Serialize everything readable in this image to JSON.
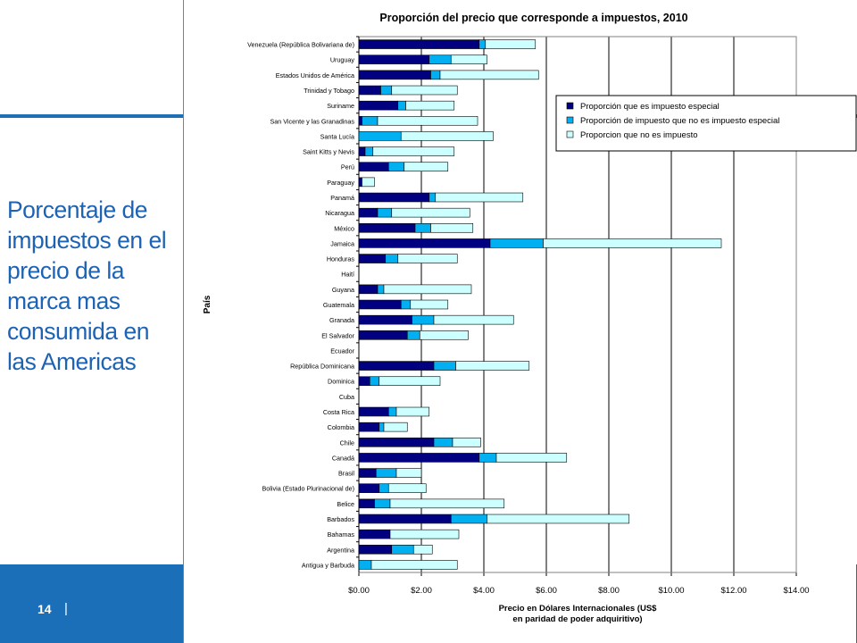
{
  "slide": {
    "title": "Porcentaje de impuestos en el precio de la marca mas consumida en las Americas",
    "page_number": "14",
    "page_separator": "|"
  },
  "colors": {
    "accent_blue": "#1b6eb8",
    "series_special": "#000080",
    "series_other_tax": "#00b0f0",
    "series_no_tax": "#ccffff"
  },
  "chart_data": {
    "type": "bar",
    "orientation": "horizontal",
    "stacked": true,
    "title": "Proporción del precio que corresponde a impuestos, 2010",
    "ylabel": "País",
    "xlabel_lines": [
      "Precio en Dólares Internacionales (US$",
      "en paridad de poder adquiritivo)"
    ],
    "xlim": [
      0,
      14
    ],
    "x_ticks": [
      "$0.00",
      "$2.00",
      "$4.00",
      "$6.00",
      "$8.00",
      "$10.00",
      "$12.00",
      "$14.00"
    ],
    "grid": true,
    "legend_position": "right",
    "categories": [
      "Venezuela (República Bolivariana de)",
      "Uruguay",
      "Estados Unidos de América",
      "Trinidad y Tobago",
      "Suriname",
      "San Vicente y las Granadinas",
      "Santa Lucía",
      "Saint Kitts y Nevis",
      "Perú",
      "Paraguay",
      "Panamá",
      "Nicaragua",
      "México",
      "Jamaica",
      "Honduras",
      "Haití",
      "Guyana",
      "Guatemala",
      "Granada",
      "El Salvador",
      "Ecuador",
      "República Dominicana",
      "Dominica",
      "Cuba",
      "Costa Rica",
      "Colombia",
      "Chile",
      "Canadá",
      "Brasil",
      "Bolivia (Estado Plurinacional de)",
      "Belice",
      "Barbados",
      "Bahamas",
      "Argentina",
      "Antigua y Barbuda"
    ],
    "series": [
      {
        "name": "Proporción que es impuesto especial",
        "values": [
          3.85,
          2.25,
          2.3,
          0.7,
          1.25,
          0.1,
          0,
          0.2,
          0.95,
          0.1,
          2.25,
          0.6,
          1.8,
          4.2,
          0.85,
          0,
          0.6,
          1.35,
          1.7,
          1.55,
          0,
          2.4,
          0.35,
          0,
          0.95,
          0.65,
          2.4,
          3.85,
          0.55,
          0.65,
          0.5,
          2.95,
          1.0,
          1.05,
          0
        ]
      },
      {
        "name": "Proporción de impuesto que no es impuesto especial",
        "values": [
          0.2,
          0.7,
          0.3,
          0.35,
          0.25,
          0.5,
          1.35,
          0.25,
          0.5,
          0,
          0.2,
          0.45,
          0.5,
          1.7,
          0.4,
          0,
          0.2,
          0.3,
          0.7,
          0.4,
          0,
          0.7,
          0.3,
          0,
          0.25,
          0.15,
          0.6,
          0.55,
          0.65,
          0.3,
          0.5,
          1.15,
          0,
          0.7,
          0.4
        ]
      },
      {
        "name": "Proporcion que no es impuesto",
        "values": [
          1.6,
          1.15,
          3.15,
          2.1,
          1.55,
          3.2,
          2.95,
          2.6,
          1.4,
          0.4,
          2.8,
          2.5,
          1.35,
          5.7,
          1.9,
          0,
          2.8,
          1.2,
          2.55,
          1.55,
          0,
          2.35,
          1.95,
          0,
          1.05,
          0.75,
          0.9,
          2.25,
          0.8,
          1.2,
          3.65,
          4.55,
          2.2,
          0.6,
          2.75
        ]
      }
    ]
  }
}
